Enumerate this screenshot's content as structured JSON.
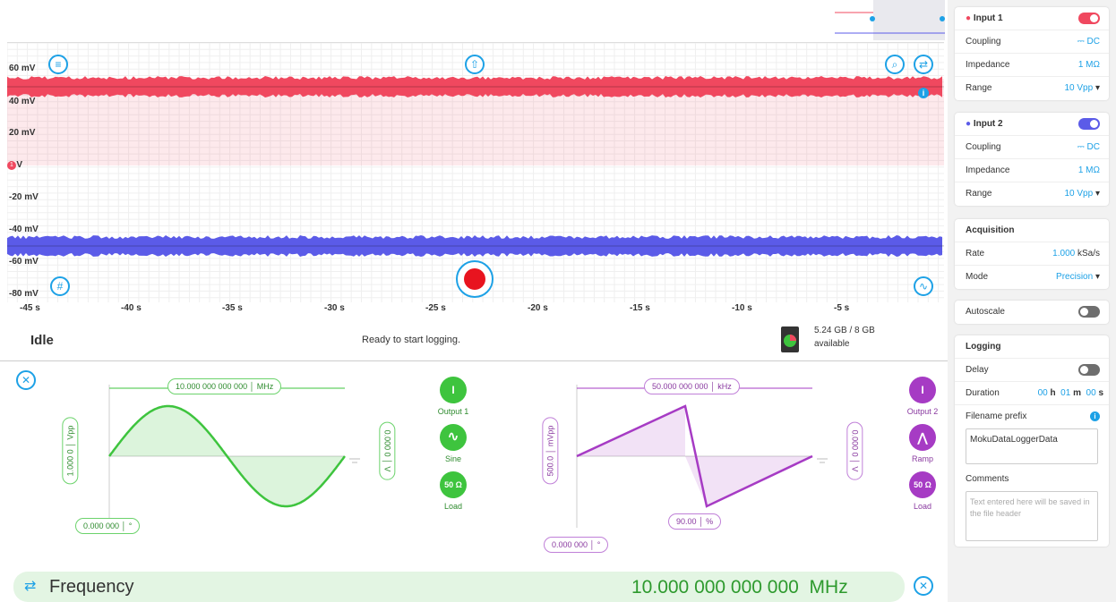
{
  "plot": {
    "y_labels": [
      "60 mV",
      "40 mV",
      "20 mV",
      "0 V",
      "-20 mV",
      "-40 mV",
      "-60 mV",
      "-80 mV"
    ],
    "x_labels": [
      "-45 s",
      "-40 s",
      "-35 s",
      "-30 s",
      "-25 s",
      "-20 s",
      "-15 s",
      "-10 s",
      "-5 s"
    ],
    "zero_marker": "1",
    "channel1_color": "#f0485f",
    "channel2_color": "#5b5be8"
  },
  "status": {
    "state": "Idle",
    "message": "Ready to start logging.",
    "storage": "5.24 GB / 8 GB",
    "storage_sub": "available"
  },
  "gen1": {
    "frequency": "10.000 000 000 000",
    "frequency_unit": "MHz",
    "amplitude": "1.000 0",
    "amplitude_unit": "Vpp",
    "offset": "0.000 0",
    "offset_unit": "V",
    "phase": "0.000 000",
    "phase_unit": "°",
    "output_label": "Output 1",
    "wave_label": "Sine",
    "load_label": "Load",
    "load_value": "50 Ω",
    "color": "#3ec43e"
  },
  "gen2": {
    "frequency": "50.000 000 000",
    "frequency_unit": "kHz",
    "amplitude": "500.0",
    "amplitude_unit": "mVpp",
    "offset": "0.000 0",
    "offset_unit": "V",
    "phase": "0.000 000",
    "phase_unit": "°",
    "symmetry": "90.00",
    "symmetry_unit": "%",
    "output_label": "Output 2",
    "wave_label": "Ramp",
    "load_label": "Load",
    "load_value": "50 Ω",
    "color": "#a63bc4"
  },
  "bottom": {
    "param_label": "Frequency",
    "param_value": "10.000 000 000 000",
    "param_unit": "MHz"
  },
  "panel": {
    "input1": {
      "title": "Input 1",
      "coupling_label": "Coupling",
      "coupling_value": "DC",
      "impedance_label": "Impedance",
      "impedance_value": "1 MΩ",
      "range_label": "Range",
      "range_value": "10 Vpp"
    },
    "input2": {
      "title": "Input 2",
      "coupling_label": "Coupling",
      "coupling_value": "DC",
      "impedance_label": "Impedance",
      "impedance_value": "1 MΩ",
      "range_label": "Range",
      "range_value": "10 Vpp"
    },
    "acquisition": {
      "title": "Acquisition",
      "rate_label": "Rate",
      "rate_value": "1.000",
      "rate_unit": "kSa/s",
      "mode_label": "Mode",
      "mode_value": "Precision"
    },
    "autoscale": "Autoscale",
    "logging": {
      "title": "Logging",
      "delay_label": "Delay",
      "duration_label": "Duration",
      "dur_h": "00",
      "h": "h",
      "dur_m": "01",
      "m": "m",
      "dur_s": "00",
      "s": "s",
      "prefix_label": "Filename prefix",
      "prefix_value": "MokuDataLoggerData",
      "comments_label": "Comments",
      "comments_placeholder": "Text entered here will be saved in the file header"
    }
  }
}
